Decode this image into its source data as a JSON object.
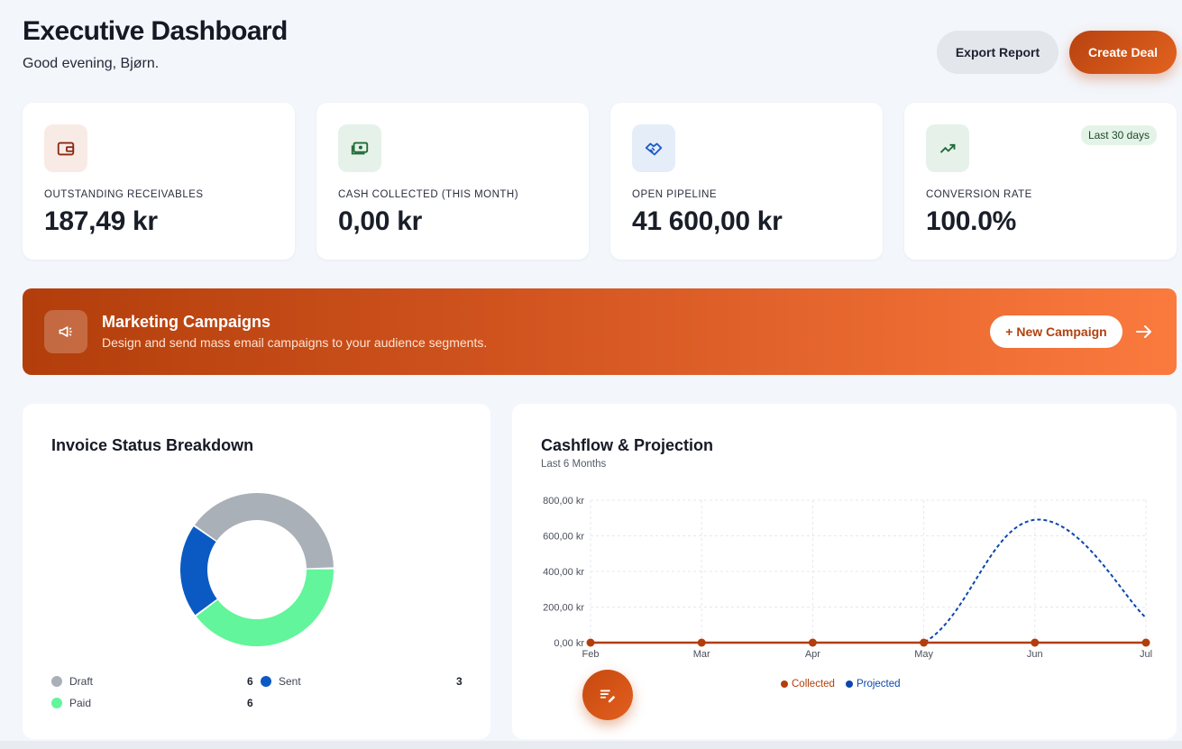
{
  "header": {
    "title": "Executive Dashboard",
    "greeting": "Good evening, Bjørn.",
    "export_label": "Export Report",
    "create_label": "Create Deal"
  },
  "kpis": [
    {
      "label": "OUTSTANDING RECEIVABLES",
      "value": "187,49 kr",
      "icon": "wallet-icon",
      "color": "#8a2a14",
      "bg": "#f8ebe6"
    },
    {
      "label": "CASH COLLECTED (THIS MONTH)",
      "value": "0,00 kr",
      "icon": "cash-icon",
      "color": "#1f6b37",
      "bg": "#e6f2e9"
    },
    {
      "label": "OPEN PIPELINE",
      "value": "41 600,00 kr",
      "icon": "handshake-icon",
      "color": "#1d5bc8",
      "bg": "#e5edf8"
    },
    {
      "label": "CONVERSION RATE",
      "value": "100.0%",
      "icon": "trending-up-icon",
      "color": "#1f6b37",
      "bg": "#e6f2e9",
      "badge": "Last 30 days"
    }
  ],
  "banner": {
    "title": "Marketing Campaigns",
    "subtitle": "Design and send mass email campaigns to your audience segments.",
    "button_label": "+ New Campaign",
    "icon": "megaphone-icon"
  },
  "invoice_panel": {
    "title": "Invoice Status Breakdown",
    "legend": [
      {
        "label": "Draft",
        "count": "6",
        "color": "#aab0b7"
      },
      {
        "label": "Sent",
        "count": "3",
        "color": "#0b5ac4"
      },
      {
        "label": "Paid",
        "count": "6",
        "color": "#62f59b"
      }
    ]
  },
  "cashflow_panel": {
    "title": "Cashflow & Projection",
    "subtitle": "Last 6 Months",
    "legend": [
      {
        "label": "Collected",
        "color": "#b23e0b"
      },
      {
        "label": "Projected",
        "color": "#0b47b0"
      }
    ]
  },
  "chart_data": [
    {
      "type": "pie",
      "title": "Invoice Status Breakdown",
      "categories": [
        "Draft",
        "Sent",
        "Paid"
      ],
      "values": [
        6,
        3,
        6
      ],
      "colors": [
        "#aab0b7",
        "#0b5ac4",
        "#62f59b"
      ]
    },
    {
      "type": "line",
      "title": "Cashflow & Projection",
      "subtitle": "Last 6 Months",
      "categories": [
        "Feb",
        "Mar",
        "Apr",
        "May",
        "Jun",
        "Jul"
      ],
      "y_ticks": [
        "0,00 kr",
        "200,00 kr",
        "400,00 kr",
        "600,00 kr",
        "800,00 kr"
      ],
      "ylim": [
        0,
        800
      ],
      "grid": true,
      "legend_position": "bottom",
      "series": [
        {
          "name": "Collected",
          "values": [
            0,
            0,
            0,
            0,
            0,
            0
          ],
          "color": "#b23e0b",
          "style": "solid"
        },
        {
          "name": "Projected",
          "values": [
            0,
            0,
            0,
            0,
            690,
            140
          ],
          "color": "#0b47b0",
          "style": "dashed"
        }
      ]
    }
  ]
}
